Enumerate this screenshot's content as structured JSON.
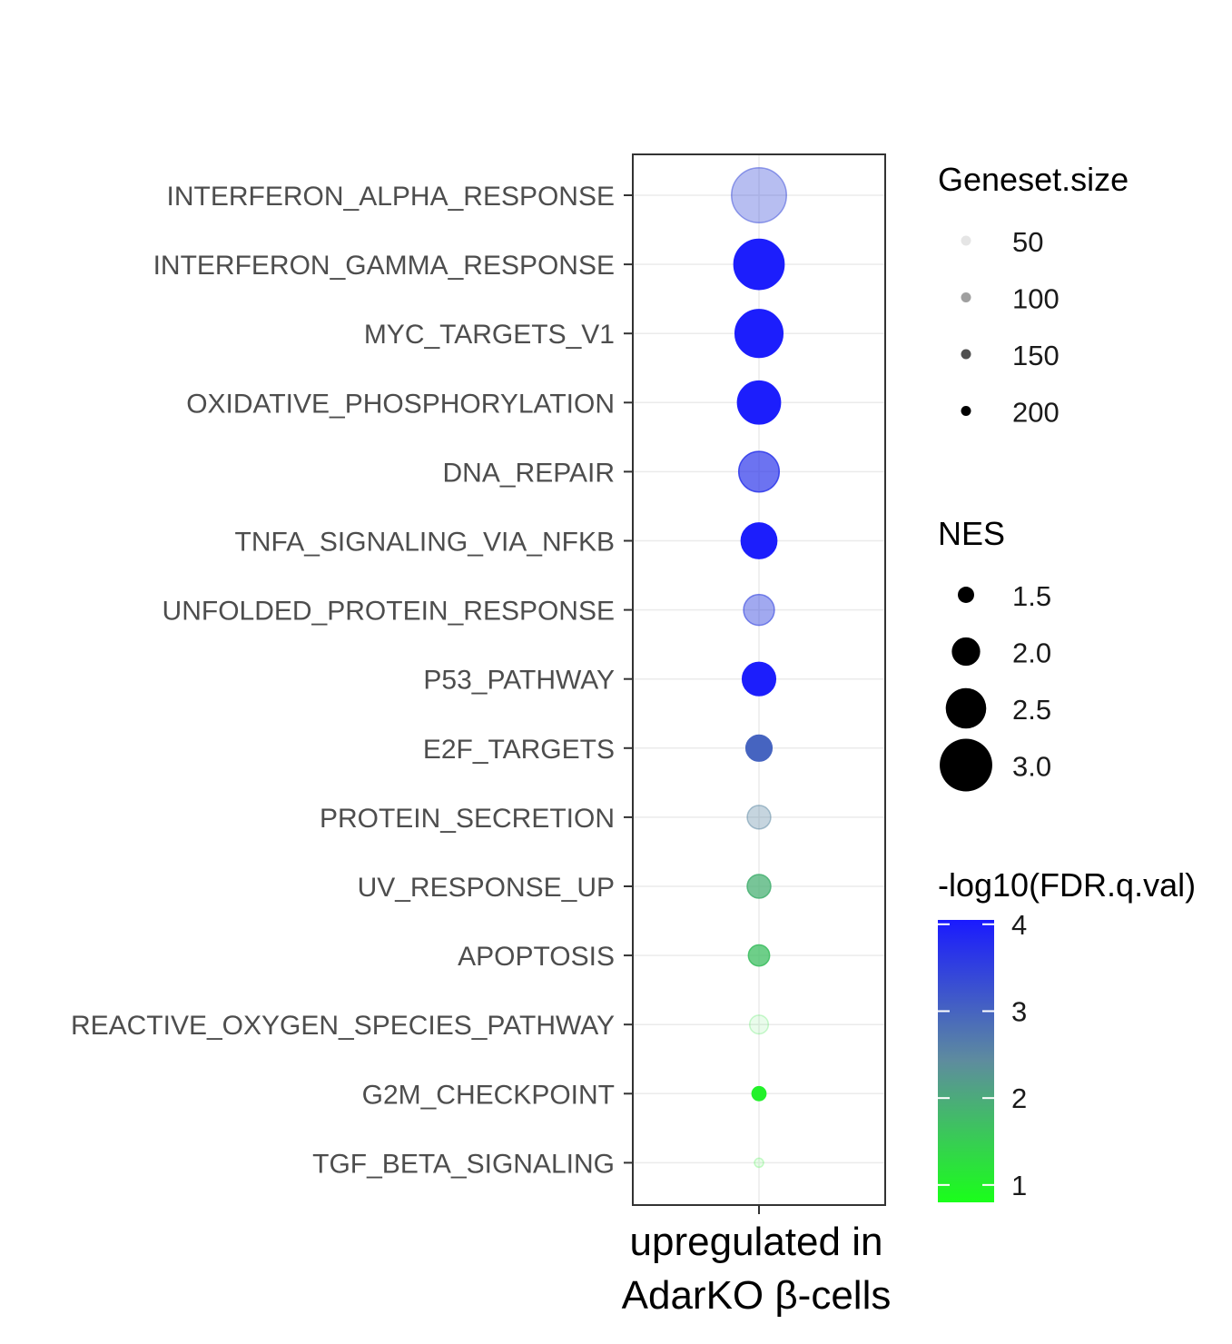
{
  "chart_data": {
    "type": "scatter",
    "x_category": "upregulated in AdarKO β-cells",
    "x_category_lines": [
      "upregulated in",
      "AdarKO β-cells"
    ],
    "pathways": [
      {
        "name": "INTERFERON_ALPHA_RESPONSE",
        "nes": 3.1,
        "geneset_size": 97,
        "neg_log10_fdr": 3.4
      },
      {
        "name": "INTERFERON_GAMMA_RESPONSE",
        "nes": 2.9,
        "geneset_size": 200,
        "neg_log10_fdr": 4.0
      },
      {
        "name": "MYC_TARGETS_V1",
        "nes": 2.8,
        "geneset_size": 200,
        "neg_log10_fdr": 4.0
      },
      {
        "name": "OXIDATIVE_PHOSPHORYLATION",
        "nes": 2.6,
        "geneset_size": 200,
        "neg_log10_fdr": 4.0
      },
      {
        "name": "DNA_REPAIR",
        "nes": 2.5,
        "geneset_size": 150,
        "neg_log10_fdr": 3.7
      },
      {
        "name": "TNFA_SIGNALING_VIA_NFKB",
        "nes": 2.3,
        "geneset_size": 200,
        "neg_log10_fdr": 4.0
      },
      {
        "name": "UNFOLDED_PROTEIN_RESPONSE",
        "nes": 2.1,
        "geneset_size": 113,
        "neg_log10_fdr": 3.5
      },
      {
        "name": "P53_PATHWAY",
        "nes": 2.2,
        "geneset_size": 200,
        "neg_log10_fdr": 4.0
      },
      {
        "name": "E2F_TARGETS",
        "nes": 1.9,
        "geneset_size": 200,
        "neg_log10_fdr": 3.0
      },
      {
        "name": "PROTEIN_SECRETION",
        "nes": 1.8,
        "geneset_size": 96,
        "neg_log10_fdr": 2.5
      },
      {
        "name": "UV_RESPONSE_UP",
        "nes": 1.8,
        "geneset_size": 158,
        "neg_log10_fdr": 1.9
      },
      {
        "name": "APOPTOSIS",
        "nes": 1.7,
        "geneset_size": 161,
        "neg_log10_fdr": 1.7
      },
      {
        "name": "REACTIVE_OXYGEN_SPECIES_PATHWAY",
        "nes": 1.6,
        "geneset_size": 49,
        "neg_log10_fdr": 1.2
      },
      {
        "name": "G2M_CHECKPOINT",
        "nes": 1.4,
        "geneset_size": 200,
        "neg_log10_fdr": 1.0
      },
      {
        "name": "TGF_BETA_SIGNALING",
        "nes": 1.2,
        "geneset_size": 54,
        "neg_log10_fdr": 1.0
      }
    ],
    "size_legend": {
      "title": "Geneset.size",
      "breaks": [
        50,
        100,
        150,
        200
      ],
      "labels": [
        "50",
        "100",
        "150",
        "200"
      ]
    },
    "nes_legend": {
      "title": "NES",
      "breaks": [
        1.5,
        2.0,
        2.5,
        3.0
      ],
      "labels": [
        "1.5",
        "2.0",
        "2.5",
        "3.0"
      ]
    },
    "color_legend": {
      "title": "-log10(FDR.q.val)",
      "range": [
        0.8,
        4.05
      ],
      "breaks": [
        4,
        3,
        2,
        1
      ],
      "labels": [
        "4",
        "3",
        "2",
        "1"
      ],
      "low_color": "#1aff1a",
      "high_color": "#1a1aff"
    },
    "grid": true
  }
}
